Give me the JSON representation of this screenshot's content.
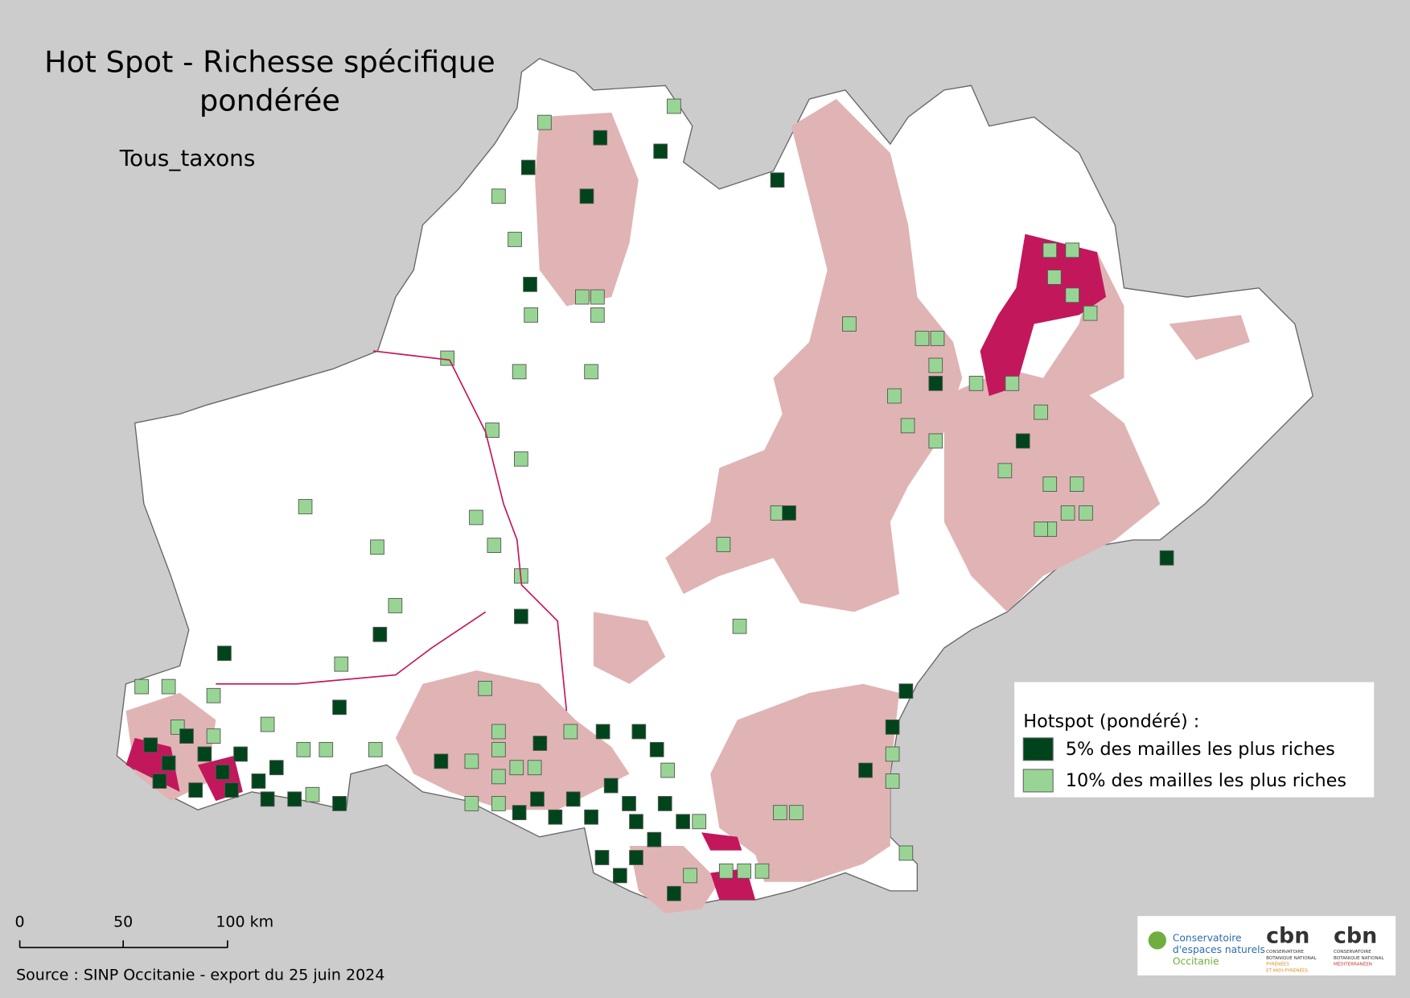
{
  "header": {
    "title": [
      "Hot Spot - Richesse spécifique",
      "pondérée"
    ],
    "subtitle": "Tous_taxons"
  },
  "legend": {
    "title": "Hotspot (pondéré) :",
    "items": [
      {
        "label": "5% des mailles les plus riches",
        "color": "#00441b"
      },
      {
        "label": "10% des mailles les plus riches",
        "color": "#98d594"
      }
    ]
  },
  "scale_bar": {
    "labels": [
      "0",
      "50",
      "100 km"
    ]
  },
  "source": "Source : SINP Occitanie - export du 25 juin 2024",
  "logos": {
    "cen": [
      "Conservatoire",
      "d'espaces naturels",
      "Occitanie"
    ],
    "cbn1": [
      "cbn",
      "CONSERVATOIRE",
      "BOTANIQUE NATIONAL",
      "PYRÉNÉES",
      "ET MIDI-PYRÉNÉES"
    ],
    "cbn2": [
      "cbn",
      "CONSERVATOIRE",
      "BOTANIQUE NATIONAL",
      "MÉDITERRANÉEN"
    ]
  }
}
